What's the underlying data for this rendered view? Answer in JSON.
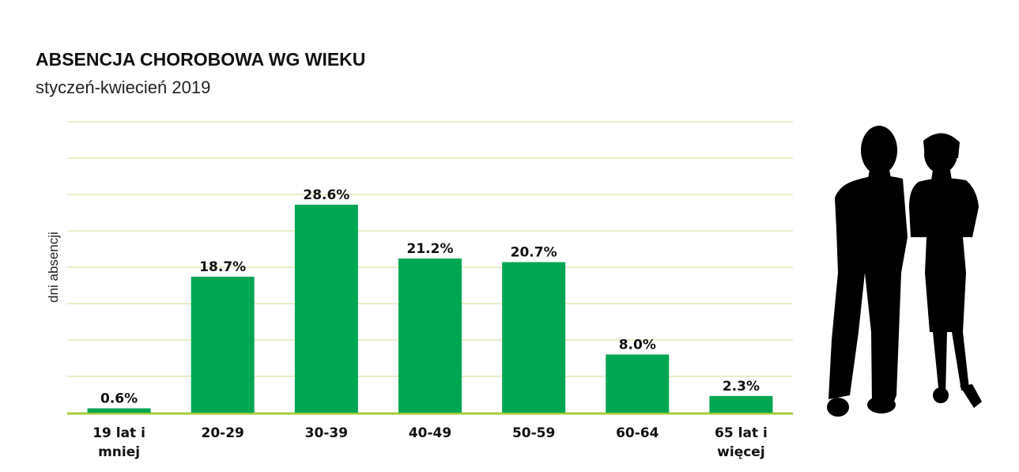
{
  "chart_data": {
    "type": "bar",
    "title": "ABSENCJA CHOROBOWA WG WIEKU",
    "subtitle": "styczeń-kwiecień 2019",
    "ylabel": "dni absencji",
    "xlabel": "",
    "categories": [
      [
        "19 lat i",
        "mniej"
      ],
      [
        "20-29"
      ],
      [
        "30-39"
      ],
      [
        "40-49"
      ],
      [
        "50-59"
      ],
      [
        "60-64"
      ],
      [
        "65 lat i",
        "więcej"
      ]
    ],
    "values": [
      0.6,
      18.7,
      28.6,
      21.2,
      20.7,
      8.0,
      2.3
    ],
    "value_labels": [
      "0.6%",
      "18.7%",
      "28.6%",
      "21.2%",
      "20.7%",
      "8.0%",
      "2.3%"
    ],
    "ylim": [
      0,
      40
    ],
    "grid": true,
    "y_tick_labels_shown": false,
    "colors": {
      "bar": "#00a651",
      "grid": "#d8e6a8",
      "baseline": "#a6cd39"
    }
  },
  "illustration": {
    "icon": "people-silhouette-icon"
  }
}
